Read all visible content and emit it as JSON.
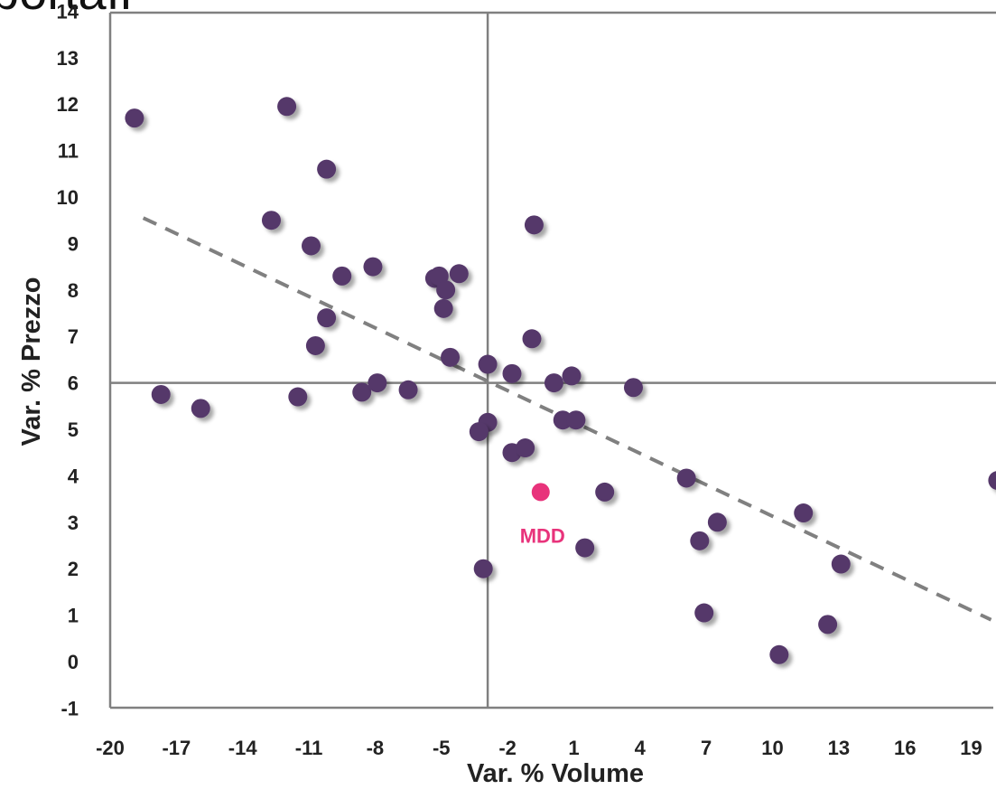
{
  "header_fragment": "portafi",
  "chart_data": {
    "type": "scatter",
    "xlabel": "Var. % Volume",
    "ylabel": "Var. % Prezzo",
    "xlim": [
      -20,
      20
    ],
    "ylim": [
      -1,
      14
    ],
    "x_ticks": [
      "-20",
      "-17",
      "-14",
      "-11",
      "-8",
      "-5",
      "-2",
      "1",
      "4",
      "7",
      "10",
      "13",
      "16",
      "19"
    ],
    "x_tick_values": [
      -20,
      -17,
      -14,
      -11,
      -8,
      -5,
      -2,
      1,
      4,
      7,
      10,
      13,
      16,
      19
    ],
    "y_ticks": [
      "-1",
      "0",
      "1",
      "2",
      "3",
      "4",
      "5",
      "6",
      "7",
      "8",
      "9",
      "10",
      "11",
      "12",
      "13",
      "14"
    ],
    "y_tick_values": [
      -1,
      0,
      1,
      2,
      3,
      4,
      5,
      6,
      7,
      8,
      9,
      10,
      11,
      12,
      13,
      14
    ],
    "negative_tick_label": "-1",
    "quadrant_lines": {
      "x": -2.9,
      "y": 6.0
    },
    "trendline": {
      "x": [
        -18.5,
        19.9
      ],
      "y": [
        9.55,
        0.9
      ],
      "style": "dashed"
    },
    "grid": false,
    "colors": {
      "points": "#55386b",
      "highlight": "#e8337b",
      "trendline": "#808080",
      "axes": "#808080",
      "negative_tick": "#e81010"
    },
    "points": [
      {
        "x": -18.9,
        "y": 11.7
      },
      {
        "x": -12.0,
        "y": 11.95
      },
      {
        "x": -10.2,
        "y": 10.6
      },
      {
        "x": -12.7,
        "y": 9.5
      },
      {
        "x": -10.9,
        "y": 8.95
      },
      {
        "x": -9.5,
        "y": 8.3
      },
      {
        "x": -8.1,
        "y": 8.5
      },
      {
        "x": -5.3,
        "y": 8.25
      },
      {
        "x": -5.1,
        "y": 8.3
      },
      {
        "x": -4.8,
        "y": 8.0
      },
      {
        "x": -4.2,
        "y": 8.35
      },
      {
        "x": -10.2,
        "y": 7.4
      },
      {
        "x": -4.9,
        "y": 7.6
      },
      {
        "x": -10.7,
        "y": 6.8
      },
      {
        "x": -4.6,
        "y": 6.55
      },
      {
        "x": -17.7,
        "y": 5.75
      },
      {
        "x": -15.9,
        "y": 5.45
      },
      {
        "x": -11.5,
        "y": 5.7
      },
      {
        "x": -8.6,
        "y": 5.8
      },
      {
        "x": -7.9,
        "y": 6.0
      },
      {
        "x": -6.5,
        "y": 5.85
      },
      {
        "x": -2.9,
        "y": 6.4
      },
      {
        "x": -1.8,
        "y": 6.2
      },
      {
        "x": -0.8,
        "y": 9.4
      },
      {
        "x": -0.9,
        "y": 6.95
      },
      {
        "x": 0.1,
        "y": 6.0
      },
      {
        "x": 0.9,
        "y": 6.15
      },
      {
        "x": 3.7,
        "y": 5.9
      },
      {
        "x": -2.9,
        "y": 5.15
      },
      {
        "x": -3.3,
        "y": 4.95
      },
      {
        "x": 0.5,
        "y": 5.2
      },
      {
        "x": 1.1,
        "y": 5.2
      },
      {
        "x": -1.8,
        "y": 4.5
      },
      {
        "x": -1.2,
        "y": 4.6
      },
      {
        "x": 2.4,
        "y": 3.65
      },
      {
        "x": 6.1,
        "y": 3.95
      },
      {
        "x": 7.5,
        "y": 3.0
      },
      {
        "x": 6.7,
        "y": 2.6
      },
      {
        "x": 1.5,
        "y": 2.45
      },
      {
        "x": -3.1,
        "y": 2.0
      },
      {
        "x": 11.4,
        "y": 3.2
      },
      {
        "x": 13.1,
        "y": 2.1
      },
      {
        "x": 6.9,
        "y": 1.05
      },
      {
        "x": 12.5,
        "y": 0.8
      },
      {
        "x": 10.3,
        "y": 0.15
      },
      {
        "x": 20.2,
        "y": 3.9
      }
    ],
    "highlight": {
      "x": -0.5,
      "y": 3.65,
      "label": "MDD"
    }
  }
}
